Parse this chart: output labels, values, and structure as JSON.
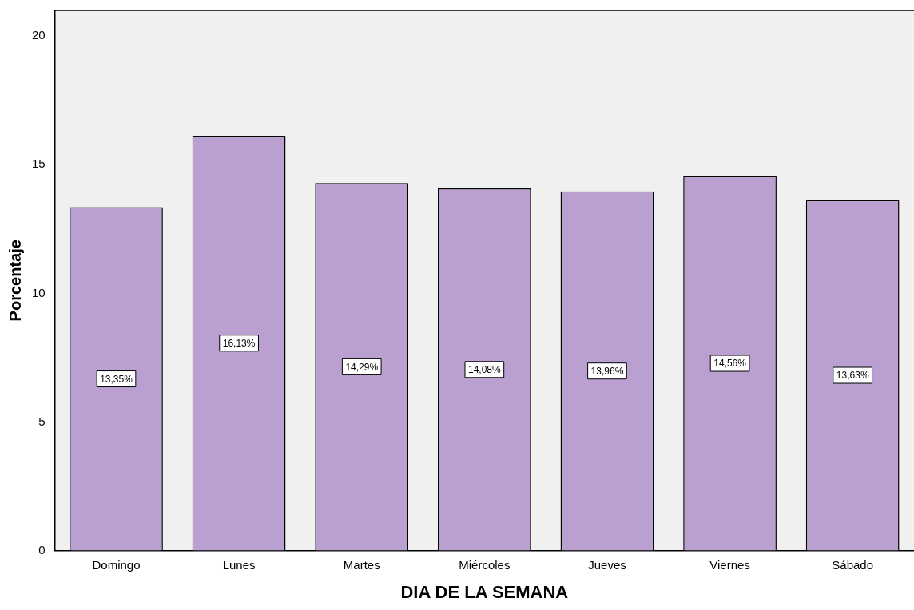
{
  "chart_data": {
    "type": "bar",
    "xlabel": "DIA DE LA SEMANA",
    "ylabel": "Porcentaje",
    "categories": [
      "Domingo",
      "Lunes",
      "Martes",
      "Miércoles",
      "Jueves",
      "Viernes",
      "Sábado"
    ],
    "values": [
      13.35,
      16.13,
      14.29,
      14.08,
      13.96,
      14.56,
      13.63
    ],
    "value_labels": [
      "13,35%",
      "16,13%",
      "14,29%",
      "14,08%",
      "13,96%",
      "14,56%",
      "13,63%"
    ],
    "color": "#b9a0d0",
    "ylim": [
      0,
      21
    ],
    "yticks": [
      0,
      5,
      10,
      15,
      20
    ],
    "grid": false,
    "legend": false
  }
}
